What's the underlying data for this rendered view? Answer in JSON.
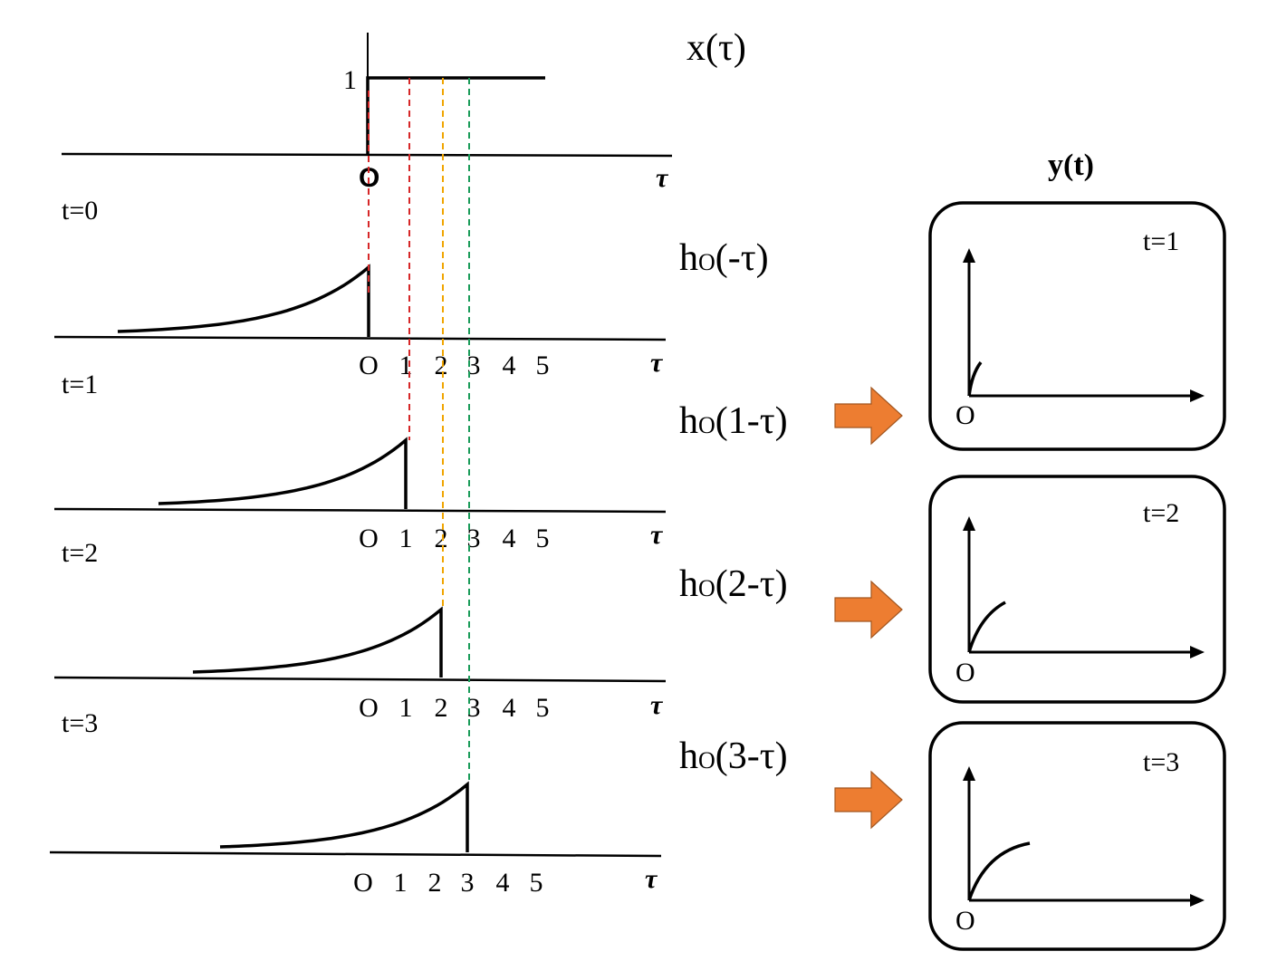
{
  "x_plot": {
    "function_label": "x(τ)",
    "amplitude_label": "1",
    "origin_label": "O",
    "axis_label": "τ"
  },
  "panels": [
    {
      "time_label": "t=0",
      "function_label": "h",
      "function_sub": "O",
      "function_arg": "(-τ)",
      "shift": 0,
      "axis_label": "τ"
    },
    {
      "time_label": "t=1",
      "function_label": "h",
      "function_sub": "O",
      "function_arg": "(1-τ)",
      "shift": 1,
      "axis_label": "τ"
    },
    {
      "time_label": "t=2",
      "function_label": "h",
      "function_sub": "O",
      "function_arg": "(2-τ)",
      "shift": 2,
      "axis_label": "τ"
    },
    {
      "time_label": "t=3",
      "function_label": "h",
      "function_sub": "O",
      "function_arg": "(3-τ)",
      "shift": 3,
      "axis_label": "τ"
    }
  ],
  "tick_labels": [
    "O",
    "1",
    "2",
    "3",
    "4",
    "5"
  ],
  "guide_line_colors": [
    "#d62728",
    "#d62728",
    "#f0a500",
    "#1a9c5a"
  ],
  "arrow_color": "#ed7d31",
  "output": {
    "title": "y(t)",
    "origin_label": "O",
    "boxes": [
      {
        "time_label": "t=1"
      },
      {
        "time_label": "t=2"
      },
      {
        "time_label": "t=3"
      }
    ]
  }
}
